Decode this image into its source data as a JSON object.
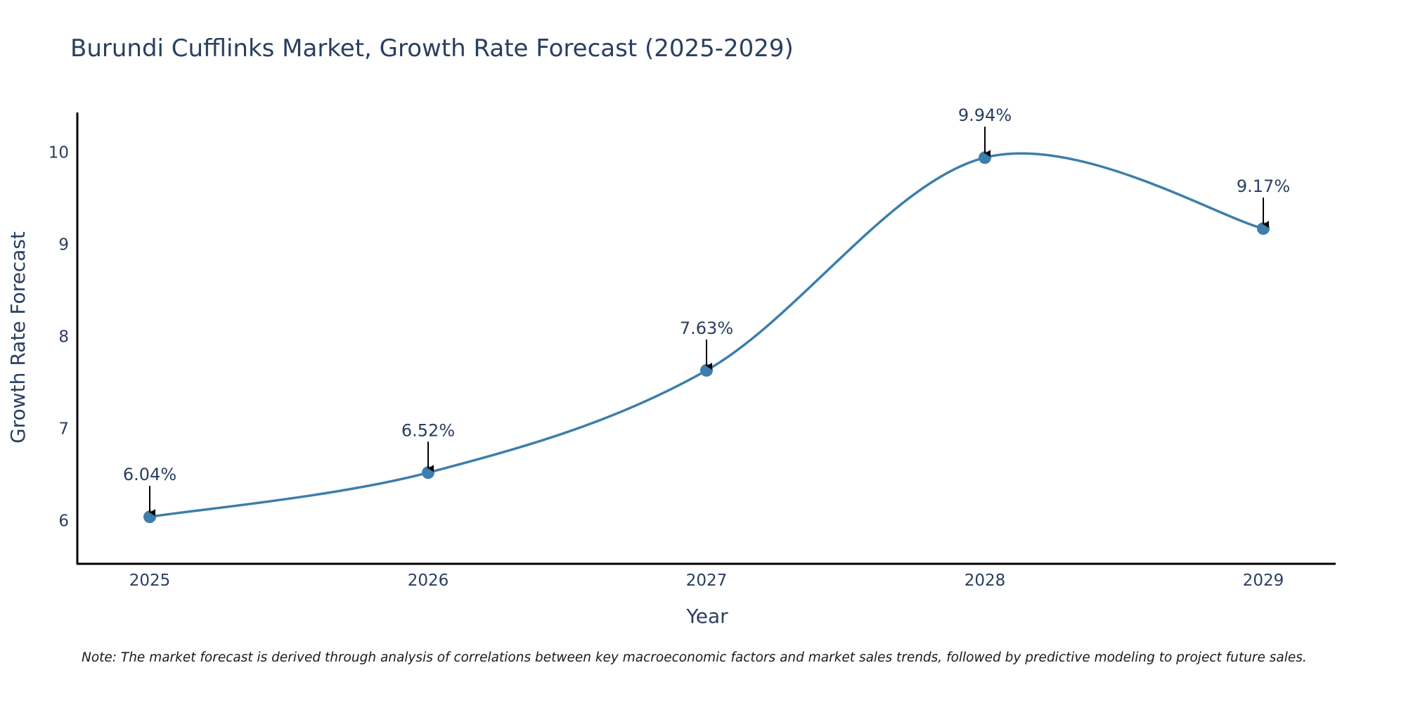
{
  "chart_data": {
    "type": "line",
    "title": "Burundi Cufflinks Market, Growth Rate Forecast (2025-2029)",
    "xlabel": "Year",
    "ylabel": "Growth Rate Forecast",
    "categories": [
      "2025",
      "2026",
      "2027",
      "2028",
      "2029"
    ],
    "values": [
      6.04,
      6.52,
      7.63,
      9.94,
      9.17
    ],
    "data_labels": [
      "6.04%",
      "6.52%",
      "7.63%",
      "9.94%",
      "9.17%"
    ],
    "y_ticks": [
      6,
      7,
      8,
      9,
      10
    ],
    "ylim": [
      5.53,
      10.43
    ],
    "grid": false,
    "line_shape": "spline",
    "series_color": "#3d7eab",
    "annotation_arrow_color": "#000000",
    "note": "Note: The market forecast is derived through analysis of correlations between key macroeconomic factors and market sales trends, followed by predictive modeling to project future sales."
  }
}
